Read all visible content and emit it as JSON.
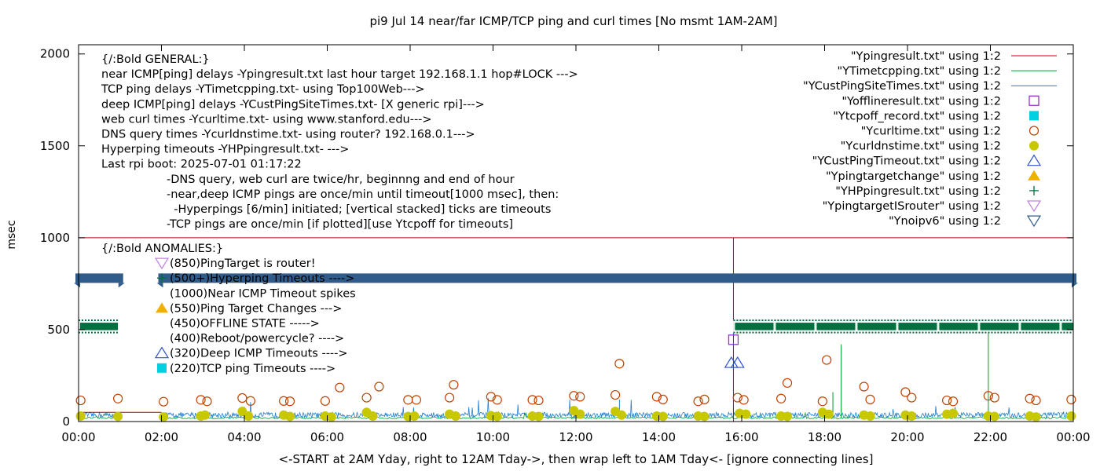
{
  "chart_data": {
    "type": "scatter",
    "title": "pi9 Jul 14  near/far ICMP/TCP ping and curl times [No msmt 1AM-2AM]",
    "xlabel": "<-START at 2AM Yday, right to 12AM Tday->, then wrap left to 1AM Tday<- [ignore connecting lines]",
    "ylabel": "msec",
    "xlim": [
      0,
      24
    ],
    "ylim": [
      0,
      2050
    ],
    "x_ticks": [
      {
        "v": 0,
        "label": "00:00"
      },
      {
        "v": 2,
        "label": "02:00"
      },
      {
        "v": 4,
        "label": "04:00"
      },
      {
        "v": 6,
        "label": "06:00"
      },
      {
        "v": 8,
        "label": "08:00"
      },
      {
        "v": 10,
        "label": "10:00"
      },
      {
        "v": 12,
        "label": "12:00"
      },
      {
        "v": 14,
        "label": "14:00"
      },
      {
        "v": 16,
        "label": "16:00"
      },
      {
        "v": 18,
        "label": "18:00"
      },
      {
        "v": 20,
        "label": "20:00"
      },
      {
        "v": 22,
        "label": "22:00"
      },
      {
        "v": 24,
        "label": "00:00"
      }
    ],
    "y_ticks": [
      {
        "v": 0,
        "label": "0"
      },
      {
        "v": 500,
        "label": "500"
      },
      {
        "v": 1000,
        "label": "1000"
      },
      {
        "v": 1500,
        "label": "1500"
      },
      {
        "v": 2000,
        "label": "2000"
      }
    ],
    "legend_position": "top-right",
    "legend": [
      {
        "label": "\"Ypingresult.txt\" using 1:2",
        "symbol": "line",
        "color": "#c00000"
      },
      {
        "label": "\"YTimetcpping.txt\" using 1:2",
        "symbol": "line",
        "color": "#009e2e"
      },
      {
        "label": "\"YCustPingSiteTimes.txt\" using 1:2",
        "symbol": "line",
        "color": "#1f7fd4"
      },
      {
        "label": "\"Yofflineresult.txt\" using 1:2",
        "symbol": "square-open",
        "color": "#9932cc"
      },
      {
        "label": "\"Ytcpoff_record.txt\" using 1:2",
        "symbol": "square-filled",
        "color": "#00d0e0"
      },
      {
        "label": "\"Ycurltime.txt\" using 1:2",
        "symbol": "circle-open",
        "color": "#c04000"
      },
      {
        "label": "\"Ycurldnstime.txt\" using 1:2",
        "symbol": "circle-filled",
        "color": "#c8c800"
      },
      {
        "label": "\"YCustPingTimeout.txt\" using 1:2",
        "symbol": "triangle-up-open",
        "color": "#3050d0"
      },
      {
        "label": "\"Ypingtargetchange\" using 1:2",
        "symbol": "triangle-up-filled",
        "color": "#f0b000"
      },
      {
        "label": "\"YHPpingresult.txt\" using 1:2",
        "symbol": "plus",
        "color": "#007040"
      },
      {
        "label": "\"YpingtargetISrouter\" using 1:2",
        "symbol": "triangle-down-open",
        "color": "#c080e0"
      },
      {
        "label": "\"Ynoipv6\" using 1:2",
        "symbol": "triangle-down-open",
        "color": "#305c8c"
      }
    ],
    "annotations_general": [
      "{/:Bold GENERAL:}",
      "near ICMP[ping] delays -Ypingresult.txt last hour target 192.168.1.1 hop#LOCK --->",
      "TCP ping delays -YTimetcpping.txt- using Top100Web--->",
      "deep ICMP[ping] delays -YCustPingSiteTimes.txt- [X generic rpi]--->",
      "web curl times -Ycurltime.txt- using www.stanford.edu--->",
      "DNS query times -Ycurldnstime.txt- using router? 192.168.0.1--->",
      "Hyperping timeouts -YHPpingresult.txt- --->",
      "Last rpi boot: 2025-07-01 01:17:22"
    ],
    "annotations_notes": [
      "-DNS query, web curl are twice/hr, beginnng and end of hour",
      "-near,deep ICMP pings are once/min until timeout[1000 msec], then:",
      "  -Hyperpings [6/min] initiated; [vertical stacked] ticks are timeouts",
      "-TCP pings are once/min [if plotted][use Ytcpoff for timeouts]"
    ],
    "annotations_anomalies": [
      {
        "text": "{/:Bold ANOMALIES:}",
        "marker": ""
      },
      {
        "text": "(850)PingTarget is router!",
        "marker": "triangle-down-open"
      },
      {
        "text": "(500+)Hyperping Timeouts ---->",
        "marker": "plus"
      },
      {
        "text": "(1000)Near ICMP Timeout spikes",
        "marker": ""
      },
      {
        "text": "(550)Ping Target Changes --->",
        "marker": "triangle-up-filled"
      },
      {
        "text": "(450)OFFLINE STATE ----->",
        "marker": ""
      },
      {
        "text": "(400)Reboot/powercycle? ---->",
        "marker": ""
      },
      {
        "text": "(320)Deep ICMP Timeouts ---->",
        "marker": "triangle-up-open"
      },
      {
        "text": "(220)TCP ping Timeouts ---->",
        "marker": "square-filled"
      }
    ],
    "reference_lines": [
      {
        "type": "horizontal",
        "y": 1000,
        "series": "Ypingresult.txt"
      },
      {
        "type": "vertical",
        "x": 15.8,
        "y_from": 0,
        "y_to": 1000,
        "series": "Ypingresult.txt"
      }
    ],
    "noipv6_band": {
      "y": 780,
      "x_ranges": [
        [
          0.0,
          1.0
        ],
        [
          2.0,
          24.0
        ]
      ]
    },
    "hyperping_band": {
      "y_from": 480,
      "y_to": 555,
      "x_ranges": [
        [
          0.0,
          0.95
        ],
        [
          15.8,
          24.0
        ]
      ]
    },
    "offline_points": [
      {
        "x": 15.8,
        "y": 445
      }
    ],
    "deep_timeout_points": [
      {
        "x": 15.75,
        "y": 320
      },
      {
        "x": 15.9,
        "y": 320
      }
    ],
    "spikes": [
      {
        "x": 15.8,
        "y": 80,
        "series": "YCustPingSiteTimes.txt"
      },
      {
        "x": 18.4,
        "y": 420,
        "series": "YTimetcpping.txt"
      },
      {
        "x": 18.2,
        "y": 160,
        "series": "YTimetcpping.txt"
      },
      {
        "x": 21.95,
        "y": 480,
        "series": "YTimetcpping.txt"
      },
      {
        "x": 13.05,
        "y": 120,
        "series": "YCustPingSiteTimes.txt"
      },
      {
        "x": 4.0,
        "y": 80,
        "series": "YCustPingSiteTimes.txt"
      }
    ],
    "curl_points": [
      {
        "x": 0.05,
        "y": 115
      },
      {
        "x": 0.95,
        "y": 125
      },
      {
        "x": 2.05,
        "y": 108
      },
      {
        "x": 2.95,
        "y": 118
      },
      {
        "x": 3.1,
        "y": 110
      },
      {
        "x": 3.95,
        "y": 128
      },
      {
        "x": 4.15,
        "y": 112
      },
      {
        "x": 4.95,
        "y": 112
      },
      {
        "x": 5.1,
        "y": 110
      },
      {
        "x": 5.95,
        "y": 112
      },
      {
        "x": 6.3,
        "y": 185
      },
      {
        "x": 6.95,
        "y": 130
      },
      {
        "x": 7.25,
        "y": 190
      },
      {
        "x": 7.95,
        "y": 118
      },
      {
        "x": 8.15,
        "y": 118
      },
      {
        "x": 8.95,
        "y": 130
      },
      {
        "x": 9.05,
        "y": 200
      },
      {
        "x": 9.95,
        "y": 135
      },
      {
        "x": 10.1,
        "y": 118
      },
      {
        "x": 10.95,
        "y": 118
      },
      {
        "x": 11.1,
        "y": 115
      },
      {
        "x": 11.95,
        "y": 140
      },
      {
        "x": 12.1,
        "y": 135
      },
      {
        "x": 12.95,
        "y": 145
      },
      {
        "x": 13.05,
        "y": 315
      },
      {
        "x": 13.95,
        "y": 135
      },
      {
        "x": 14.1,
        "y": 120
      },
      {
        "x": 14.95,
        "y": 110
      },
      {
        "x": 15.1,
        "y": 120
      },
      {
        "x": 15.9,
        "y": 130
      },
      {
        "x": 16.05,
        "y": 118
      },
      {
        "x": 16.95,
        "y": 125
      },
      {
        "x": 17.1,
        "y": 210
      },
      {
        "x": 17.95,
        "y": 110
      },
      {
        "x": 18.05,
        "y": 335
      },
      {
        "x": 18.95,
        "y": 190
      },
      {
        "x": 19.1,
        "y": 120
      },
      {
        "x": 19.95,
        "y": 160
      },
      {
        "x": 20.1,
        "y": 130
      },
      {
        "x": 20.95,
        "y": 115
      },
      {
        "x": 21.1,
        "y": 110
      },
      {
        "x": 21.95,
        "y": 140
      },
      {
        "x": 22.1,
        "y": 130
      },
      {
        "x": 22.95,
        "y": 125
      },
      {
        "x": 23.1,
        "y": 115
      },
      {
        "x": 23.95,
        "y": 120
      }
    ],
    "dns_points": [
      {
        "x": 0.05,
        "y": 30
      },
      {
        "x": 0.95,
        "y": 28
      },
      {
        "x": 2.05,
        "y": 25
      },
      {
        "x": 2.95,
        "y": 30
      },
      {
        "x": 3.05,
        "y": 35
      },
      {
        "x": 3.95,
        "y": 55
      },
      {
        "x": 4.1,
        "y": 30
      },
      {
        "x": 4.95,
        "y": 35
      },
      {
        "x": 5.1,
        "y": 28
      },
      {
        "x": 5.95,
        "y": 30
      },
      {
        "x": 6.1,
        "y": 25
      },
      {
        "x": 6.95,
        "y": 50
      },
      {
        "x": 7.1,
        "y": 30
      },
      {
        "x": 7.95,
        "y": 28
      },
      {
        "x": 8.1,
        "y": 30
      },
      {
        "x": 8.95,
        "y": 40
      },
      {
        "x": 9.1,
        "y": 30
      },
      {
        "x": 9.95,
        "y": 32
      },
      {
        "x": 10.1,
        "y": 28
      },
      {
        "x": 10.95,
        "y": 30
      },
      {
        "x": 11.1,
        "y": 28
      },
      {
        "x": 11.95,
        "y": 60
      },
      {
        "x": 12.1,
        "y": 40
      },
      {
        "x": 12.95,
        "y": 55
      },
      {
        "x": 13.1,
        "y": 35
      },
      {
        "x": 13.95,
        "y": 30
      },
      {
        "x": 14.1,
        "y": 28
      },
      {
        "x": 14.95,
        "y": 30
      },
      {
        "x": 15.1,
        "y": 28
      },
      {
        "x": 15.95,
        "y": 45
      },
      {
        "x": 16.1,
        "y": 40
      },
      {
        "x": 16.95,
        "y": 30
      },
      {
        "x": 17.1,
        "y": 28
      },
      {
        "x": 17.95,
        "y": 50
      },
      {
        "x": 18.1,
        "y": 40
      },
      {
        "x": 18.95,
        "y": 35
      },
      {
        "x": 19.1,
        "y": 30
      },
      {
        "x": 19.95,
        "y": 35
      },
      {
        "x": 20.1,
        "y": 30
      },
      {
        "x": 20.95,
        "y": 40
      },
      {
        "x": 21.1,
        "y": 45
      },
      {
        "x": 21.95,
        "y": 30
      },
      {
        "x": 22.1,
        "y": 28
      },
      {
        "x": 22.95,
        "y": 30
      },
      {
        "x": 23.1,
        "y": 25
      },
      {
        "x": 23.95,
        "y": 30
      }
    ],
    "baseline_ms": {
      "YCustPingSiteTimes.txt": 35,
      "YTimetcpping.txt": 20,
      "Ypingresult.txt": 50
    }
  }
}
